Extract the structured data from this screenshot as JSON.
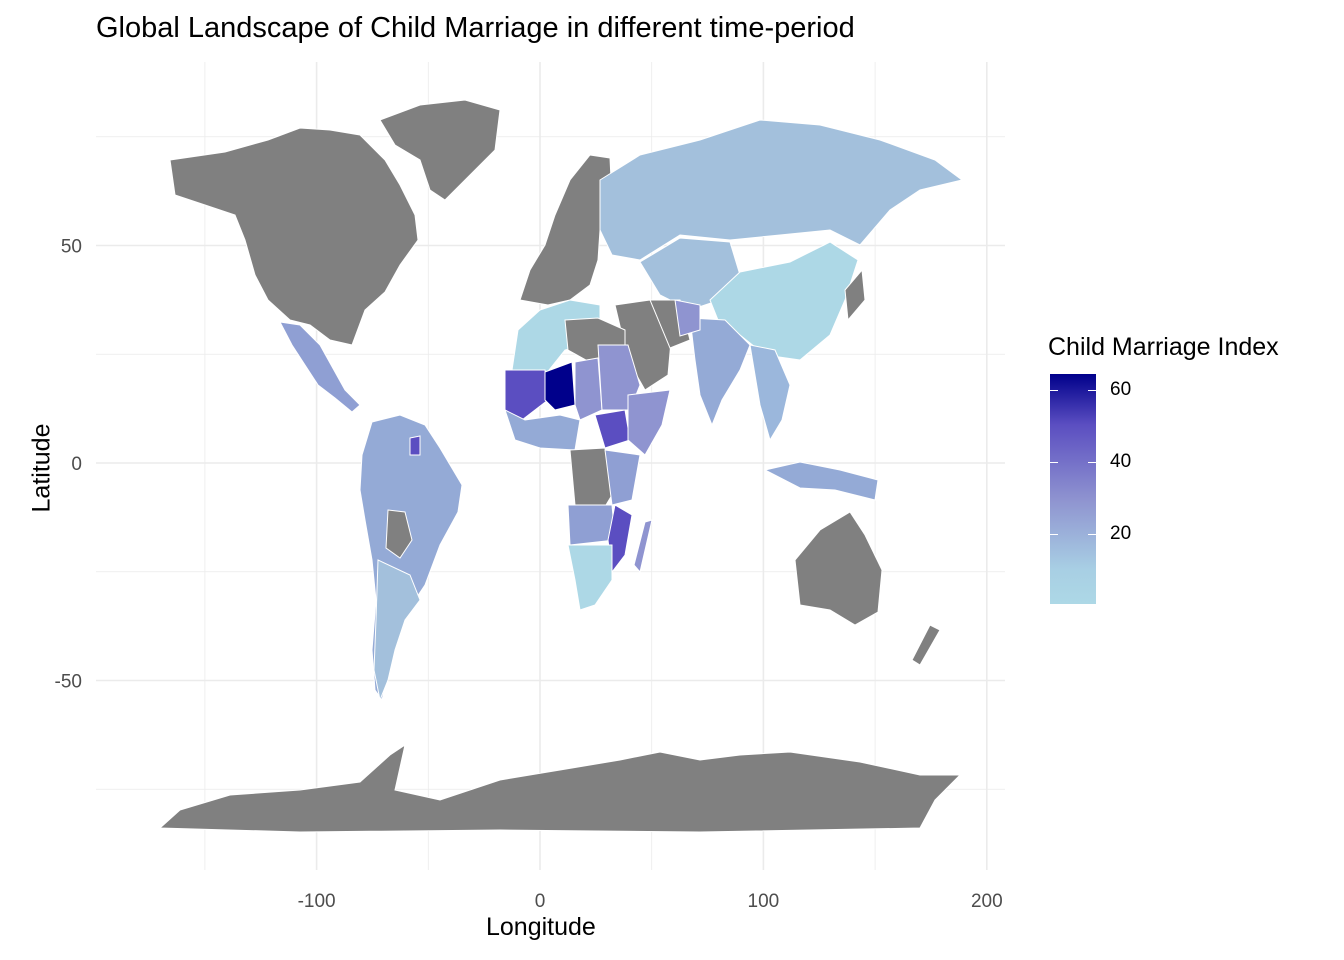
{
  "title": "Global Landscape of Child Marriage in different time-period",
  "axes": {
    "xlabel": "Longitude",
    "ylabel": "Latitude",
    "x_ticks": [
      "-100",
      "0",
      "100",
      "200"
    ],
    "y_ticks": [
      "50",
      "0",
      "-50"
    ],
    "xlim": [
      -180,
      200
    ],
    "ylim": [
      -90,
      85
    ]
  },
  "legend": {
    "title": "Child Marriage Index",
    "ticks": [
      "60",
      "40",
      "20"
    ],
    "range": [
      1,
      65
    ],
    "color_low": "#add8e6",
    "color_high": "#00008b"
  },
  "colors": {
    "no_data": "#808080",
    "grid": "#ebebeb",
    "border": "#ffffff"
  },
  "chart_data": {
    "type": "heatmap",
    "map": "world choropleth",
    "title": "Global Landscape of Child Marriage in different time-period",
    "xlabel": "Longitude",
    "ylabel": "Latitude",
    "value_label": "Child Marriage Index",
    "scale_range": [
      1,
      65
    ],
    "regions": [
      {
        "name": "Niger",
        "value": 65
      },
      {
        "name": "Mali",
        "value": 45
      },
      {
        "name": "Chad",
        "value": 30
      },
      {
        "name": "South Sudan",
        "value": 40
      },
      {
        "name": "Mozambique",
        "value": 45
      },
      {
        "name": "Madagascar",
        "value": 30
      },
      {
        "name": "Guyana",
        "value": 45
      },
      {
        "name": "India",
        "value": 20
      },
      {
        "name": "Mexico",
        "value": 20
      },
      {
        "name": "Brazil",
        "value": 18
      },
      {
        "name": "Argentina",
        "value": 10
      },
      {
        "name": "Russia",
        "value": 8
      },
      {
        "name": "China",
        "value": 3
      },
      {
        "name": "Algeria",
        "value": 3
      },
      {
        "name": "South Africa",
        "value": 3
      },
      {
        "name": "Indonesia",
        "value": 15
      },
      {
        "name": "Australia",
        "value": null
      },
      {
        "name": "United States",
        "value": null
      },
      {
        "name": "Canada",
        "value": null
      },
      {
        "name": "Greenland",
        "value": null
      },
      {
        "name": "Antarctica",
        "value": null
      },
      {
        "name": "Saudi Arabia",
        "value": null
      },
      {
        "name": "DR Congo",
        "value": null
      },
      {
        "name": "Europe",
        "value": null
      }
    ]
  }
}
